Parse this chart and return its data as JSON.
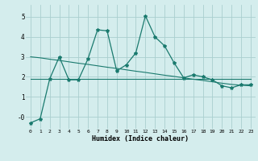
{
  "x": [
    0,
    1,
    2,
    3,
    4,
    5,
    6,
    7,
    8,
    9,
    10,
    11,
    12,
    13,
    14,
    15,
    16,
    17,
    18,
    19,
    20,
    21,
    22,
    23
  ],
  "series1": [
    -0.3,
    -0.1,
    1.9,
    3.0,
    1.85,
    1.85,
    2.9,
    4.35,
    4.3,
    2.3,
    2.6,
    3.2,
    5.05,
    4.0,
    3.55,
    2.7,
    1.95,
    2.1,
    2.0,
    1.85,
    1.55,
    1.45,
    1.6,
    1.6
  ],
  "series2": [
    3.0,
    2.95,
    2.88,
    2.82,
    2.75,
    2.68,
    2.62,
    2.55,
    2.48,
    2.42,
    2.35,
    2.28,
    2.22,
    2.15,
    2.08,
    2.02,
    1.95,
    1.88,
    1.82,
    1.75,
    1.68,
    1.62,
    1.58,
    1.55
  ],
  "series3": [
    1.9,
    1.9,
    1.9,
    1.9,
    1.9,
    1.9,
    1.9,
    1.9,
    1.9,
    1.9,
    1.9,
    1.9,
    1.9,
    1.9,
    1.9,
    1.9,
    1.9,
    1.9,
    1.9,
    1.9,
    1.9,
    1.9,
    1.9,
    1.9
  ],
  "line_color": "#1a7a6e",
  "bg_color": "#d4eded",
  "grid_color": "#aacfcf",
  "xlabel": "Humidex (Indice chaleur)",
  "ylim": [
    -0.6,
    5.6
  ],
  "xlim": [
    -0.5,
    23.5
  ],
  "yticks": [
    0,
    1,
    2,
    3,
    4,
    5
  ],
  "ytick_labels": [
    "-0",
    "1",
    "2",
    "3",
    "4",
    "5"
  ],
  "xticks": [
    0,
    1,
    2,
    3,
    4,
    5,
    6,
    7,
    8,
    9,
    10,
    11,
    12,
    13,
    14,
    15,
    16,
    17,
    18,
    19,
    20,
    21,
    22,
    23
  ]
}
